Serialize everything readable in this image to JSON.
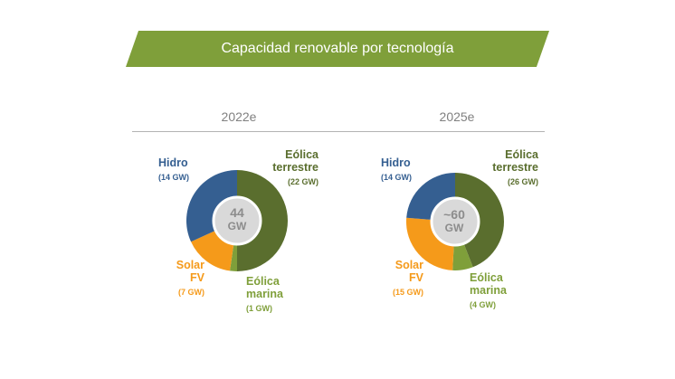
{
  "title": "Capacidad renovable por tecnología",
  "colors": {
    "hidro": "#355f91",
    "eolica_terrestre": "#5a6e2e",
    "eolica_marina": "#7f9f3a",
    "solar": "#f59a1a",
    "banner": "#7f9f3a"
  },
  "chart_data": [
    {
      "type": "pie",
      "subtitle": "2022e",
      "center_value": "44",
      "center_unit": "GW",
      "slices": [
        {
          "key": "eolica_terrestre",
          "name_lines": [
            "Eólica",
            "terrestre"
          ],
          "value": 22,
          "value_label": "(22 GW)"
        },
        {
          "key": "eolica_marina",
          "name_lines": [
            "Eólica",
            "marina"
          ],
          "value": 1,
          "value_label": "(1 GW)"
        },
        {
          "key": "solar",
          "name_lines": [
            "Solar",
            "FV"
          ],
          "value": 7,
          "value_label": "(7 GW)"
        },
        {
          "key": "hidro",
          "name_lines": [
            "Hidro"
          ],
          "value": 14,
          "value_label": "(14 GW)"
        }
      ]
    },
    {
      "type": "pie",
      "subtitle": "2025e",
      "center_value": "~60",
      "center_unit": "GW",
      "slices": [
        {
          "key": "eolica_terrestre",
          "name_lines": [
            "Eólica",
            "terrestre"
          ],
          "value": 26,
          "value_label": "(26 GW)"
        },
        {
          "key": "eolica_marina",
          "name_lines": [
            "Eólica",
            "marina"
          ],
          "value": 4,
          "value_label": "(4 GW)"
        },
        {
          "key": "solar",
          "name_lines": [
            "Solar",
            "FV"
          ],
          "value": 15,
          "value_label": "(15 GW)"
        },
        {
          "key": "hidro",
          "name_lines": [
            "Hidro"
          ],
          "value": 14,
          "value_label": "(14 GW)"
        }
      ]
    }
  ]
}
